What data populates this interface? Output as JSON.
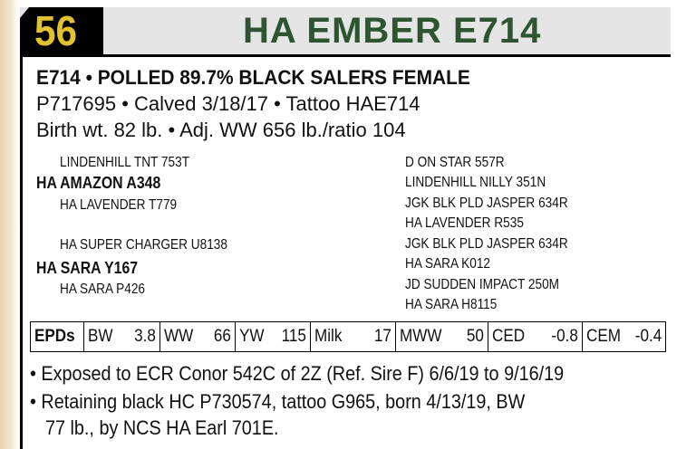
{
  "lot_number": "56",
  "animal_name": "HA EMBER E714",
  "colors": {
    "lot_number": "#e3c22f",
    "title": "#2c5530",
    "header_bg": "#e5e5e5"
  },
  "description": {
    "line1": "E714 • POLLED 89.7% BLACK SALERS FEMALE",
    "line2": "P717695 • Calved 3/18/17 • Tattoo HAE714",
    "line3": "Birth wt. 82 lb. • Adj. WW 656 lb./ratio 104"
  },
  "pedigree": {
    "sire": "HA AMAZON A348",
    "sire_sire": "LINDENHILL TNT 753T",
    "sire_dam": "HA LAVENDER T779",
    "dam": "HA SARA Y167",
    "dam_sire": "HA SUPER CHARGER U8138",
    "dam_dam": "HA SARA P426",
    "grandparents": [
      "D ON STAR 557R",
      "LINDENHILL NILLY 351N",
      "JGK BLK PLD JASPER 634R",
      "HA LAVENDER R535",
      "JGK BLK PLD JASPER 634R",
      "HA SARA K012",
      "JD SUDDEN IMPACT 250M",
      "HA SARA H8115"
    ]
  },
  "epds": {
    "label": "EPDs",
    "items": [
      {
        "trait": "BW",
        "value": "3.8"
      },
      {
        "trait": "WW",
        "value": "66"
      },
      {
        "trait": "YW",
        "value": "115"
      },
      {
        "trait": "Milk",
        "value": "17"
      },
      {
        "trait": "MWW",
        "value": "50"
      },
      {
        "trait": "CED",
        "value": "-0.8"
      },
      {
        "trait": "CEM",
        "value": "-0.4"
      }
    ]
  },
  "notes": [
    "• Exposed to ECR Conor 542C of 2Z (Ref. Sire F) 6/6/19 to 9/16/19",
    "• Retaining black HC P730574, tattoo G965, born 4/13/19, BW",
    "77 lb., by NCS HA Earl 701E."
  ]
}
